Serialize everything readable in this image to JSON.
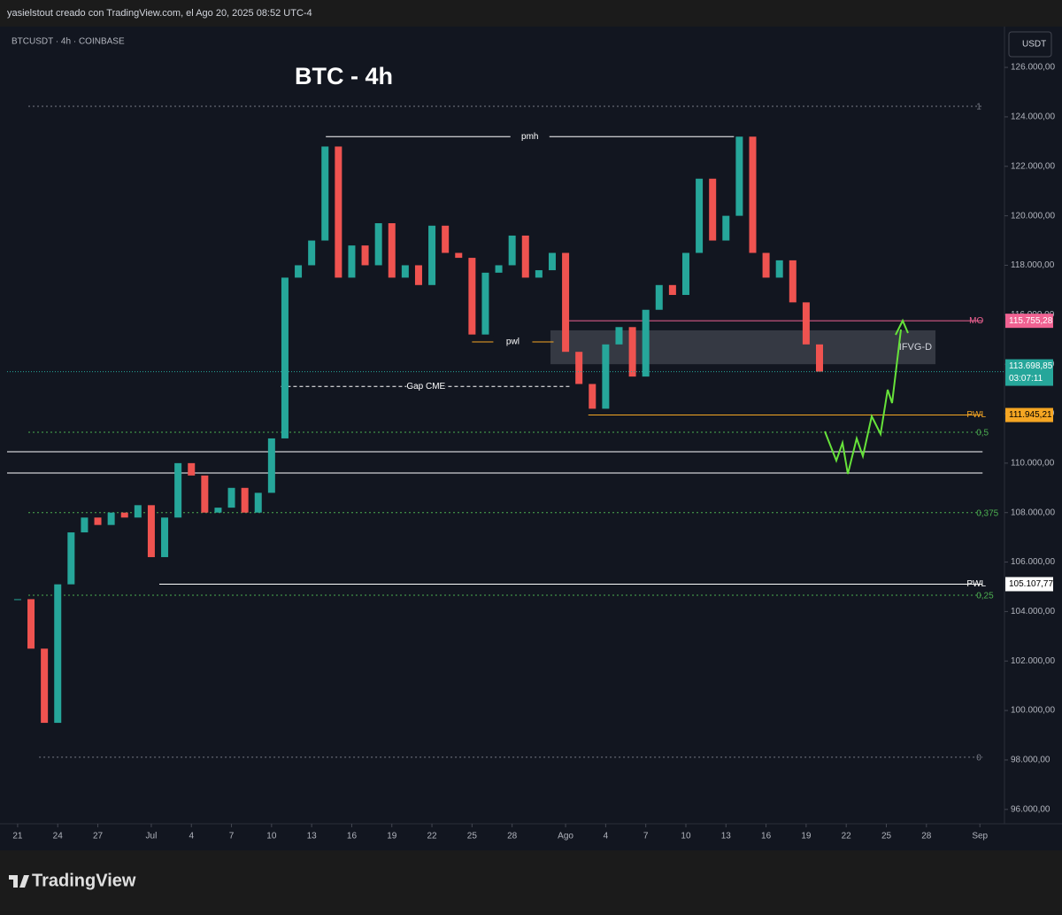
{
  "chart_data": {
    "type": "candlestick",
    "header": "yasielstout creado con TradingView.com, el Ago 20, 2025 08:52 UTC-4",
    "symbol": "BTCUSDT · 4h · COINBASE",
    "title": "BTC - 4h",
    "currency": "USDT",
    "brand": "TradingView",
    "up_color": "#26a69a",
    "down_color": "#ef5350",
    "x": [
      0,
      1,
      2,
      3,
      4,
      5,
      6,
      7,
      8,
      9,
      10,
      11,
      12,
      13,
      14,
      15,
      16,
      17,
      18,
      19,
      20,
      21,
      22,
      23,
      24,
      25,
      26,
      27,
      28,
      29,
      30,
      31,
      32,
      33,
      34,
      35,
      36,
      37,
      38,
      39,
      40,
      41,
      42,
      43,
      44,
      45,
      46,
      47,
      48,
      49,
      50,
      51,
      52,
      53,
      54,
      55,
      56,
      57,
      58,
      59,
      60
    ],
    "values": [
      104500,
      102500,
      99500,
      105100,
      107200,
      107800,
      107500,
      108000,
      107800,
      108300,
      106200,
      107800,
      110000,
      109500,
      108000,
      108200,
      109000,
      108000,
      108800,
      111000,
      117500,
      118000,
      119000,
      122800,
      117500,
      118800,
      118000,
      119700,
      117500,
      118000,
      117200,
      119600,
      118500,
      118300,
      115200,
      117700,
      118000,
      119200,
      117500,
      117800,
      118500,
      114500,
      113200,
      112200,
      114800,
      115500,
      113500,
      116200,
      117200,
      116800,
      118500,
      121500,
      119000,
      120000,
      123200,
      118500,
      117500,
      118200,
      116500,
      114800,
      113700
    ],
    "xlim": [
      -0.79,
      73.84
    ],
    "xticks": [
      {
        "value": 0,
        "label": "21"
      },
      {
        "value": 3,
        "label": "24"
      },
      {
        "value": 6,
        "label": "27"
      },
      {
        "value": 10,
        "label": "Jul"
      },
      {
        "value": 13,
        "label": "4"
      },
      {
        "value": 16,
        "label": "7"
      },
      {
        "value": 19,
        "label": "10"
      },
      {
        "value": 22,
        "label": "13"
      },
      {
        "value": 25,
        "label": "16"
      },
      {
        "value": 28,
        "label": "19"
      },
      {
        "value": 31,
        "label": "22"
      },
      {
        "value": 34,
        "label": "25"
      },
      {
        "value": 37,
        "label": "28"
      },
      {
        "value": 41,
        "label": "Ago"
      },
      {
        "value": 44,
        "label": "4"
      },
      {
        "value": 47,
        "label": "7"
      },
      {
        "value": 50,
        "label": "10"
      },
      {
        "value": 53,
        "label": "13"
      },
      {
        "value": 56,
        "label": "16"
      },
      {
        "value": 59,
        "label": "19"
      },
      {
        "value": 62,
        "label": "22"
      },
      {
        "value": 65,
        "label": "25"
      },
      {
        "value": 68,
        "label": "28"
      },
      {
        "value": 72,
        "label": "Sep"
      }
    ],
    "ylim": [
      95420,
      127650
    ],
    "yticks": [
      {
        "value": 96000,
        "label": "96.000,00"
      },
      {
        "value": 98000,
        "label": "98.000,00"
      },
      {
        "value": 100000,
        "label": "100.000,00"
      },
      {
        "value": 102000,
        "label": "102.000,00"
      },
      {
        "value": 104000,
        "label": "104.000,00"
      },
      {
        "value": 106000,
        "label": "106.000,00"
      },
      {
        "value": 108000,
        "label": "108.000,00"
      },
      {
        "value": 110000,
        "label": "110.000,00"
      },
      {
        "value": 112000,
        "label": "112.000,00"
      },
      {
        "value": 114000,
        "label": "114.000,00"
      },
      {
        "value": 116000,
        "label": "116.000,00"
      },
      {
        "value": 118000,
        "label": "118.000,00"
      },
      {
        "value": 120000,
        "label": "120.000,00"
      },
      {
        "value": 122000,
        "label": "122.000,00"
      },
      {
        "value": 124000,
        "label": "124.000,00"
      },
      {
        "value": 126000,
        "label": "126.000,00"
      }
    ],
    "levels": [
      {
        "label": "1",
        "value": 124425,
        "from": 0.8,
        "to": 72.2,
        "color": "#787b86",
        "dash": "2 3",
        "label_pos": "right"
      },
      {
        "label": "pmh",
        "value": 123200,
        "from": 23.06,
        "to": 53.6,
        "color": "#ffffff",
        "label_pos": "middle"
      },
      {
        "label": "MO",
        "value": 115755.28,
        "from": 41.06,
        "to": 72.2,
        "color": "#f06292",
        "label_pos": "right",
        "tag": "115.755,28",
        "tag_text": "#ffffff"
      },
      {
        "label": "pwl",
        "value": 114900,
        "from": 34,
        "to": 40.1,
        "color": "#f5a623",
        "label_pos": "middle"
      },
      {
        "label": "Gap CME",
        "value": 113100,
        "from": 19.7,
        "to": 41.4,
        "color": "#ffffff",
        "dash": "4 3",
        "label_pos": "middle"
      },
      {
        "label": "PWL",
        "value": 111945.21,
        "from": 42.7,
        "to": 72.2,
        "color": "#f5a623",
        "label_pos": "right",
        "tag": "111.945,21",
        "tag_text": "#000000"
      },
      {
        "label": "0,5",
        "value": 111250,
        "from": 0.8,
        "to": 72.2,
        "color": "#4caf50",
        "dash": "2 3",
        "label_pos": "right"
      },
      {
        "value": 110460,
        "from": -0.79,
        "to": 72.2,
        "color": "#ffffff"
      },
      {
        "value": 109600,
        "from": -0.79,
        "to": 72.2,
        "color": "#ffffff"
      },
      {
        "label": "0,375",
        "value": 108000,
        "from": 0.8,
        "to": 72.2,
        "color": "#4caf50",
        "dash": "2 3",
        "label_pos": "right"
      },
      {
        "label": "PWL",
        "value": 105107.77,
        "from": 10.6,
        "to": 72.2,
        "color": "#ffffff",
        "label_pos": "right",
        "tag": "105.107,77",
        "tag_text": "#000000"
      },
      {
        "label": "0,25",
        "value": 104660,
        "from": 0.8,
        "to": 72.2,
        "color": "#4caf50",
        "dash": "2 3",
        "label_pos": "right"
      },
      {
        "label": "0",
        "value": 98110,
        "from": 1.6,
        "to": 72.2,
        "color": "#787b86",
        "dash": "2 3",
        "label_pos": "right"
      }
    ],
    "zone": {
      "label": "IFVG-D",
      "from": 39.87,
      "to": 68.68,
      "top": 115370,
      "bottom": 114000
    },
    "current": {
      "value": 113698.85,
      "tag": "113.698,85",
      "countdown": "03:07:11",
      "color": "#26a69a"
    }
  }
}
